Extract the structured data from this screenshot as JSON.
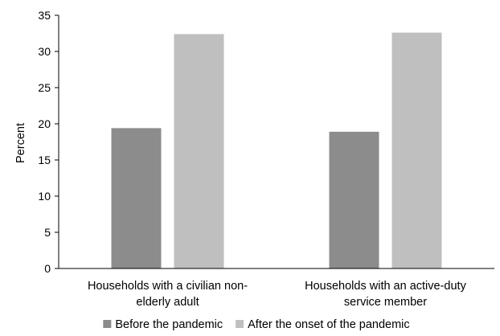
{
  "chart_data": {
    "type": "bar",
    "ylabel": "Percent",
    "xlabel": "",
    "ylim": [
      0,
      35
    ],
    "yticks": [
      0,
      5,
      10,
      15,
      20,
      25,
      30,
      35
    ],
    "grid": false,
    "legend_position": "bottom",
    "categories": [
      [
        "Households with a civilian non-",
        "elderly adult"
      ],
      [
        "Households with an active-duty",
        "service member"
      ]
    ],
    "series": [
      {
        "name": "Before the pandemic",
        "color": "#8c8c8c",
        "values": [
          19.4,
          18.9
        ]
      },
      {
        "name": "After the onset of the pandemic",
        "color": "#bfbfbf",
        "values": [
          32.4,
          32.6
        ]
      }
    ]
  }
}
